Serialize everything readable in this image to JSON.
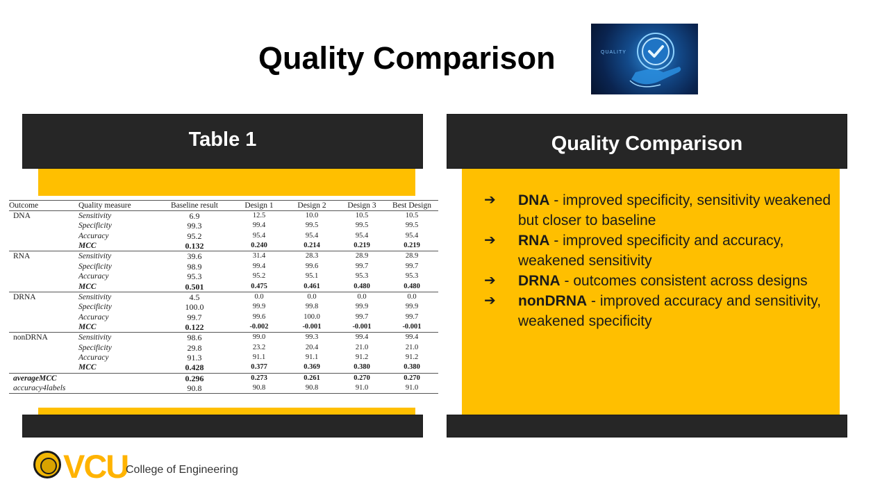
{
  "slide": {
    "title": "Quality Comparison",
    "hero_image": {
      "word": "QUALITY",
      "icon": "quality-check-hand-icon"
    }
  },
  "left_panel": {
    "header": "Table 1"
  },
  "right_panel": {
    "header": "Quality Comparison"
  },
  "table": {
    "columns": [
      "Outcome",
      "Quality measure",
      "Baseline result",
      "Design 1",
      "Design 2",
      "Design 3",
      "Best Design"
    ],
    "rows": [
      {
        "outcome": "DNA",
        "measure": "Sensitivity",
        "values": [
          "6.9",
          "12.5",
          "10.0",
          "10.5",
          "10.5"
        ]
      },
      {
        "outcome": "",
        "measure": "Specificity",
        "values": [
          "99.3",
          "99.4",
          "99.5",
          "99.5",
          "99.5"
        ]
      },
      {
        "outcome": "",
        "measure": "Accuracy",
        "values": [
          "95.2",
          "95.4",
          "95.4",
          "95.4",
          "95.4"
        ]
      },
      {
        "outcome": "",
        "measure": "MCC",
        "values": [
          "0.132",
          "0.240",
          "0.214",
          "0.219",
          "0.219"
        ]
      },
      {
        "outcome": "RNA",
        "measure": "Sensitivity",
        "values": [
          "39.6",
          "31.4",
          "28.3",
          "28.9",
          "28.9"
        ]
      },
      {
        "outcome": "",
        "measure": "Specificity",
        "values": [
          "98.9",
          "99.4",
          "99.6",
          "99.7",
          "99.7"
        ]
      },
      {
        "outcome": "",
        "measure": "Accuracy",
        "values": [
          "95.3",
          "95.2",
          "95.1",
          "95.3",
          "95.3"
        ]
      },
      {
        "outcome": "",
        "measure": "MCC",
        "values": [
          "0.501",
          "0.475",
          "0.461",
          "0.480",
          "0.480"
        ]
      },
      {
        "outcome": "DRNA",
        "measure": "Sensitivity",
        "values": [
          "4.5",
          "0.0",
          "0.0",
          "0.0",
          "0.0"
        ]
      },
      {
        "outcome": "",
        "measure": "Specificity",
        "values": [
          "100.0",
          "99.9",
          "99.8",
          "99.9",
          "99.9"
        ]
      },
      {
        "outcome": "",
        "measure": "Accuracy",
        "values": [
          "99.7",
          "99.6",
          "100.0",
          "99.7",
          "99.7"
        ]
      },
      {
        "outcome": "",
        "measure": "MCC",
        "values": [
          "0.122",
          "-0.002",
          "-0.001",
          "-0.001",
          "-0.001"
        ]
      },
      {
        "outcome": "nonDRNA",
        "measure": "Sensitivity",
        "values": [
          "98.6",
          "99.0",
          "99.3",
          "99.4",
          "99.4"
        ]
      },
      {
        "outcome": "",
        "measure": "Specificity",
        "values": [
          "29.8",
          "23.2",
          "20.4",
          "21.0",
          "21.0"
        ]
      },
      {
        "outcome": "",
        "measure": "Accuracy",
        "values": [
          "91.3",
          "91.1",
          "91.1",
          "91.2",
          "91.2"
        ]
      },
      {
        "outcome": "",
        "measure": "MCC",
        "values": [
          "0.428",
          "0.377",
          "0.369",
          "0.380",
          "0.380"
        ]
      },
      {
        "outcome": "averageMCC",
        "measure": "",
        "values": [
          "0.296",
          "0.273",
          "0.261",
          "0.270",
          "0.270"
        ]
      },
      {
        "outcome": "accuracy4labels",
        "measure": "",
        "values": [
          "90.8",
          "90.8",
          "90.8",
          "91.0",
          "91.0"
        ]
      }
    ]
  },
  "bullets": [
    {
      "term": "DNA",
      "text": " - improved specificity, sensitivity weakened but closer to baseline"
    },
    {
      "term": "RNA",
      "text": " - improved specificity and accuracy, weakened sensitivity"
    },
    {
      "term": "DRNA",
      "text": " - outcomes consistent across designs"
    },
    {
      "term": "nonDRNA",
      "text": " - improved accuracy and sensitivity, weakened specificity"
    }
  ],
  "bullet_marker": "➔",
  "footer": {
    "logo_word": "VCU",
    "college": "College of Engineering",
    "seal_icon": "vcu-seal-icon"
  },
  "colors": {
    "accent": "#ffbf00",
    "header_bg": "#262626",
    "logo_gold": "#ffb300"
  }
}
